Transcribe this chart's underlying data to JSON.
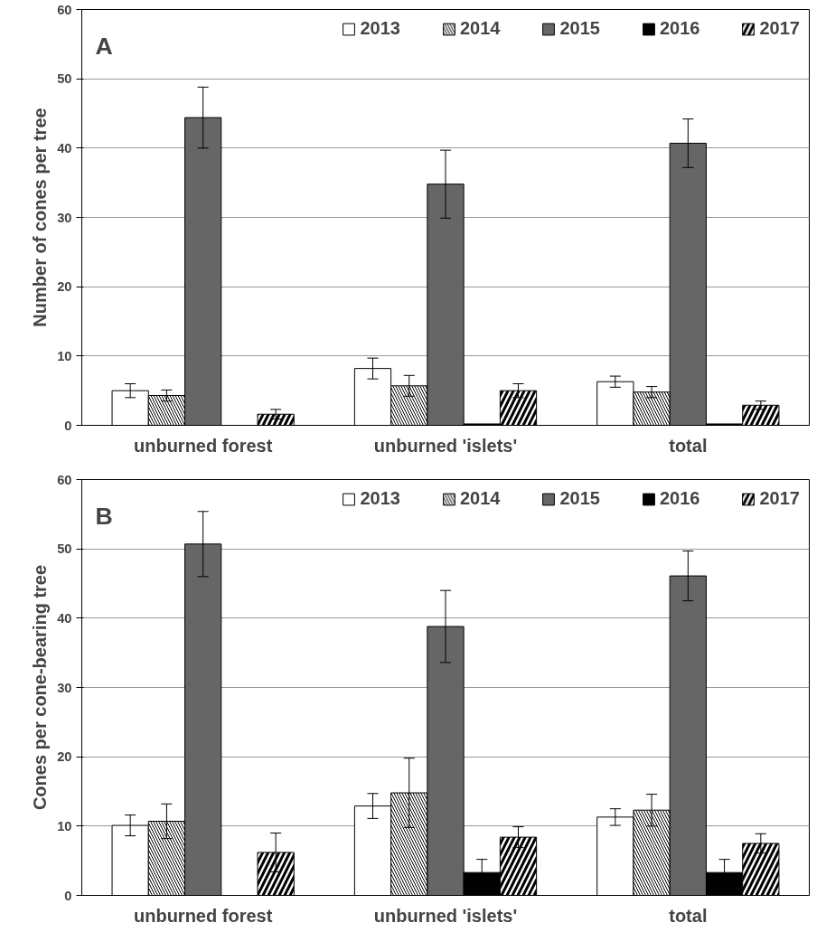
{
  "chart_data": [
    {
      "type": "bar",
      "title": "A",
      "ylabel": "Number of cones per tree",
      "categories": [
        "unburned forest",
        "unburned 'islets'",
        "total"
      ],
      "ylim": [
        0,
        60
      ],
      "yticks": [
        0,
        10,
        20,
        30,
        40,
        50,
        60
      ],
      "grid": "y",
      "legend": "top right",
      "series": [
        {
          "name": "2013",
          "color": "#ffffff",
          "values": [
            5.0,
            8.2,
            6.3
          ],
          "errors": [
            1.0,
            1.5,
            0.8
          ]
        },
        {
          "name": "2014",
          "color": "#ffffff",
          "values": [
            4.3,
            5.7,
            4.8
          ],
          "errors": [
            0.8,
            1.5,
            0.8
          ]
        },
        {
          "name": "2015",
          "color": "#666666",
          "values": [
            44.4,
            34.8,
            40.7
          ],
          "errors": [
            4.4,
            4.9,
            3.5
          ]
        },
        {
          "name": "2016",
          "color": "#000000",
          "values": [
            null,
            0.2,
            0.2
          ],
          "errors": [
            null,
            null,
            null
          ]
        },
        {
          "name": "2017",
          "color": "#ffffff",
          "values": [
            1.6,
            5.0,
            2.9
          ],
          "errors": [
            0.7,
            1.0,
            0.6
          ]
        }
      ]
    },
    {
      "type": "bar",
      "title": "B",
      "ylabel": "Cones per cone-bearing tree",
      "categories": [
        "unburned forest",
        "unburned 'islets'",
        "total"
      ],
      "ylim": [
        0,
        60
      ],
      "yticks": [
        0,
        10,
        20,
        30,
        40,
        50,
        60
      ],
      "grid": "y",
      "legend": "top right",
      "series": [
        {
          "name": "2013",
          "color": "#ffffff",
          "values": [
            10.1,
            12.9,
            11.3
          ],
          "errors": [
            1.5,
            1.8,
            1.2
          ]
        },
        {
          "name": "2014",
          "color": "#ffffff",
          "values": [
            10.7,
            14.8,
            12.3
          ],
          "errors": [
            2.5,
            5.0,
            2.3
          ]
        },
        {
          "name": "2015",
          "color": "#666666",
          "values": [
            50.7,
            38.8,
            46.1
          ],
          "errors": [
            4.7,
            5.2,
            3.6
          ]
        },
        {
          "name": "2016",
          "color": "#000000",
          "values": [
            null,
            3.3,
            3.3
          ],
          "errors": [
            null,
            1.9,
            1.9
          ]
        },
        {
          "name": "2017",
          "color": "#ffffff",
          "values": [
            6.2,
            8.4,
            7.5
          ],
          "errors": [
            2.8,
            1.5,
            1.4
          ]
        }
      ]
    }
  ]
}
